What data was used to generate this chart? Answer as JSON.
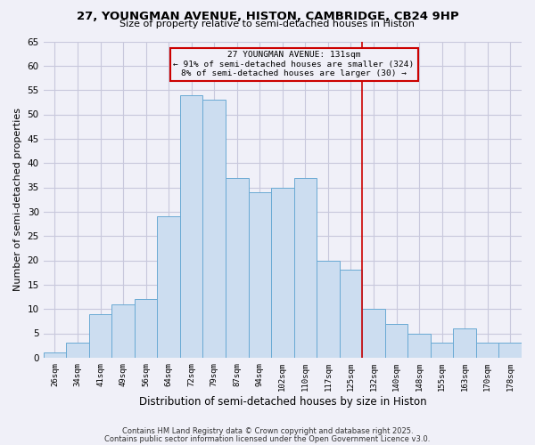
{
  "title": "27, YOUNGMAN AVENUE, HISTON, CAMBRIDGE, CB24 9HP",
  "subtitle": "Size of property relative to semi-detached houses in Histon",
  "xlabel": "Distribution of semi-detached houses by size in Histon",
  "ylabel": "Number of semi-detached properties",
  "bar_labels": [
    "26sqm",
    "34sqm",
    "41sqm",
    "49sqm",
    "56sqm",
    "64sqm",
    "72sqm",
    "79sqm",
    "87sqm",
    "94sqm",
    "102sqm",
    "110sqm",
    "117sqm",
    "125sqm",
    "132sqm",
    "140sqm",
    "148sqm",
    "155sqm",
    "163sqm",
    "170sqm",
    "178sqm"
  ],
  "bar_heights": [
    1,
    3,
    9,
    11,
    12,
    29,
    54,
    53,
    37,
    34,
    35,
    37,
    20,
    18,
    10,
    7,
    5,
    3,
    6,
    3,
    3
  ],
  "bar_color": "#ccddf0",
  "bar_edge_color": "#6aaad4",
  "ylim": [
    0,
    65
  ],
  "yticks": [
    0,
    5,
    10,
    15,
    20,
    25,
    30,
    35,
    40,
    45,
    50,
    55,
    60,
    65
  ],
  "vline_x_index": 14,
  "vline_color": "#cc0000",
  "annotation_title": "27 YOUNGMAN AVENUE: 131sqm",
  "annotation_line1": "← 91% of semi-detached houses are smaller (324)",
  "annotation_line2": "8% of semi-detached houses are larger (30) →",
  "annotation_box_color": "#cc0000",
  "footer1": "Contains HM Land Registry data © Crown copyright and database right 2025.",
  "footer2": "Contains public sector information licensed under the Open Government Licence v3.0.",
  "background_color": "#f0f0f8",
  "grid_color": "#c8c8dc"
}
